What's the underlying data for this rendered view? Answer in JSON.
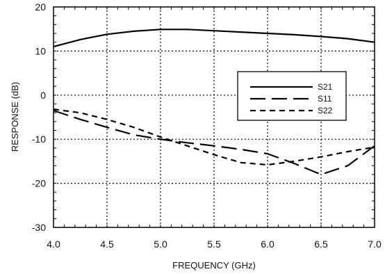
{
  "chart_data": {
    "type": "line",
    "title": "",
    "xlabel": "FREQUENCY (GHz)",
    "ylabel": "RESPONSE (dB)",
    "xlim": [
      4.0,
      7.0
    ],
    "ylim": [
      -30,
      20
    ],
    "x_ticks": [
      "4.0",
      "4.5",
      "5.0",
      "5.5",
      "6.0",
      "6.5",
      "7.0"
    ],
    "y_ticks": [
      "-30",
      "-20",
      "-10",
      "0",
      "10",
      "20"
    ],
    "grid": true,
    "legend_position": "right",
    "series": [
      {
        "name": "S21",
        "x": [
          4.0,
          4.25,
          4.5,
          4.75,
          5.0,
          5.25,
          5.5,
          5.75,
          6.0,
          6.25,
          6.5,
          6.75,
          7.0
        ],
        "y": [
          11.0,
          12.6,
          13.8,
          14.5,
          14.9,
          14.9,
          14.6,
          14.3,
          14.0,
          13.7,
          13.3,
          12.8,
          12.0
        ]
      },
      {
        "name": "S11",
        "x": [
          4.0,
          4.25,
          4.5,
          4.75,
          5.0,
          5.25,
          5.5,
          5.75,
          6.0,
          6.25,
          6.5,
          6.75,
          7.0
        ],
        "y": [
          -3.5,
          -5.5,
          -7.3,
          -9.0,
          -10.0,
          -10.8,
          -11.5,
          -12.3,
          -13.3,
          -15.5,
          -18.0,
          -16.0,
          -11.5
        ]
      },
      {
        "name": "S22",
        "x": [
          4.0,
          4.25,
          4.5,
          4.75,
          5.0,
          5.25,
          5.5,
          5.75,
          6.0,
          6.25,
          6.5,
          6.75,
          7.0
        ],
        "y": [
          -3.2,
          -4.0,
          -5.5,
          -7.3,
          -9.5,
          -11.5,
          -13.5,
          -15.3,
          -15.8,
          -15.0,
          -14.0,
          -12.8,
          -11.8
        ]
      }
    ]
  }
}
